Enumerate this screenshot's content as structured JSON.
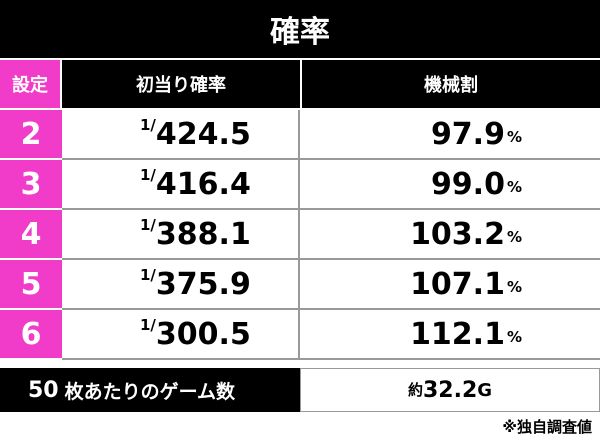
{
  "header": {
    "title": "確率"
  },
  "table": {
    "columns": [
      "設定",
      "初当り確率",
      "機械割"
    ],
    "rows": [
      {
        "setting": "2",
        "probability": {
          "numerator": "1/",
          "denominator": "424.5"
        },
        "payout": {
          "value": "97.9",
          "unit": "%"
        }
      },
      {
        "setting": "3",
        "probability": {
          "numerator": "1/",
          "denominator": "416.4"
        },
        "payout": {
          "value": "99.0",
          "unit": "%"
        }
      },
      {
        "setting": "4",
        "probability": {
          "numerator": "1/",
          "denominator": "388.1"
        },
        "payout": {
          "value": "103.2",
          "unit": "%"
        }
      },
      {
        "setting": "5",
        "probability": {
          "numerator": "1/",
          "denominator": "375.9"
        },
        "payout": {
          "value": "107.1",
          "unit": "%"
        }
      },
      {
        "setting": "6",
        "probability": {
          "numerator": "1/",
          "denominator": "300.5"
        },
        "payout": {
          "value": "112.1",
          "unit": "%"
        }
      }
    ]
  },
  "footer": {
    "label": {
      "count": "50",
      "text": "枚あたりのゲーム数"
    },
    "value": {
      "prefix": "約",
      "number": "32.2",
      "unit": "G"
    }
  },
  "note": "※独自調査値"
}
